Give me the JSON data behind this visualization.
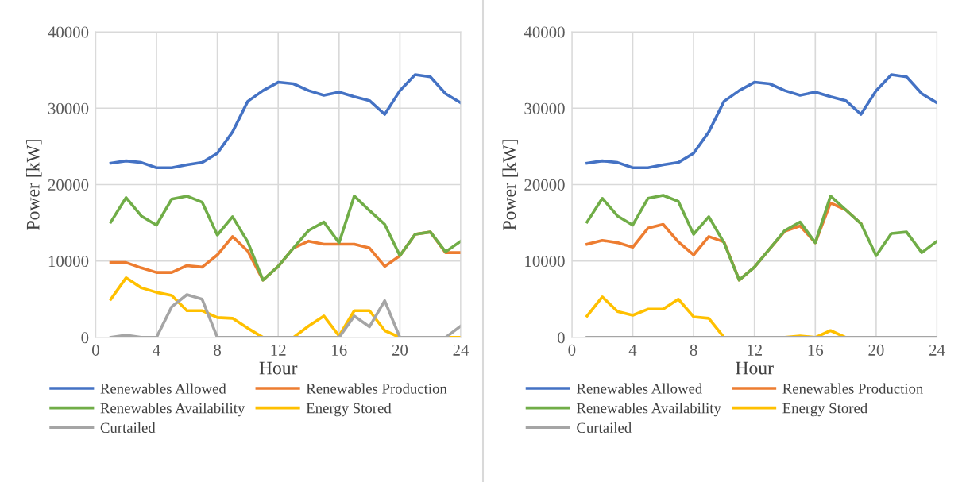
{
  "chart_data": [
    {
      "type": "line",
      "xlabel": "Hour",
      "ylabel": "Power [kW]",
      "x": [
        1,
        2,
        3,
        4,
        5,
        6,
        7,
        8,
        9,
        10,
        11,
        12,
        13,
        14,
        15,
        16,
        17,
        18,
        19,
        20,
        21,
        22,
        23,
        24
      ],
      "xlim": [
        0,
        24
      ],
      "xticks": [
        0,
        4,
        8,
        12,
        16,
        20,
        24
      ],
      "ylim": [
        0,
        40000
      ],
      "yticks": [
        0,
        10000,
        20000,
        30000,
        40000
      ],
      "grid": true,
      "legend": "bottom",
      "marker": "none",
      "line_style": "solid",
      "series": [
        {
          "name": "Renewables Allowed",
          "color": "#4472c4",
          "values": [
            22800,
            23100,
            22900,
            22200,
            22200,
            22600,
            22900,
            24100,
            26900,
            30900,
            32300,
            33400,
            33200,
            32300,
            31700,
            32100,
            31500,
            31000,
            29200,
            32300,
            34400,
            34100,
            31900,
            30700
          ]
        },
        {
          "name": "Renewables Production",
          "color": "#ed7d31",
          "values": [
            9800,
            9800,
            9100,
            8500,
            8500,
            9400,
            9200,
            10800,
            13200,
            11300,
            7500,
            9300,
            11700,
            12600,
            12200,
            12200,
            12200,
            11700,
            9300,
            10700,
            13500,
            13800,
            11100,
            11100
          ]
        },
        {
          "name": "Renewables Availability",
          "color": "#70ad47",
          "values": [
            15100,
            18300,
            15900,
            14700,
            18100,
            18500,
            17700,
            13400,
            15800,
            12500,
            7500,
            9300,
            11700,
            14000,
            15100,
            12400,
            18500,
            16600,
            14800,
            10700,
            13500,
            13800,
            11200,
            12600
          ]
        },
        {
          "name": "Energy Stored",
          "color": "#ffc000",
          "values": [
            5000,
            7800,
            6500,
            5900,
            5500,
            3500,
            3500,
            2600,
            2500,
            1200,
            0,
            0,
            0,
            1500,
            2800,
            200,
            3500,
            3500,
            900,
            0,
            0,
            0,
            0,
            0
          ]
        },
        {
          "name": "Curtailed",
          "color": "#a5a5a5",
          "values": [
            0,
            300,
            0,
            0,
            4000,
            5600,
            5000,
            0,
            0,
            0,
            0,
            0,
            0,
            0,
            0,
            0,
            2800,
            1400,
            4800,
            0,
            0,
            0,
            0,
            1500
          ]
        }
      ]
    },
    {
      "type": "line",
      "xlabel": "Hour",
      "ylabel": "Power [kW]",
      "x": [
        1,
        2,
        3,
        4,
        5,
        6,
        7,
        8,
        9,
        10,
        11,
        12,
        13,
        14,
        15,
        16,
        17,
        18,
        19,
        20,
        21,
        22,
        23,
        24
      ],
      "xlim": [
        0,
        24
      ],
      "xticks": [
        0,
        4,
        8,
        12,
        16,
        20,
        24
      ],
      "ylim": [
        0,
        40000
      ],
      "yticks": [
        0,
        10000,
        20000,
        30000,
        40000
      ],
      "grid": true,
      "legend": "bottom",
      "marker": "none",
      "line_style": "solid",
      "series": [
        {
          "name": "Renewables Allowed",
          "color": "#4472c4",
          "values": [
            22800,
            23100,
            22900,
            22200,
            22200,
            22600,
            22900,
            24100,
            26900,
            30900,
            32300,
            33400,
            33200,
            32300,
            31700,
            32100,
            31500,
            31000,
            29200,
            32300,
            34400,
            34100,
            31900,
            30700
          ]
        },
        {
          "name": "Renewables Production",
          "color": "#ed7d31",
          "values": [
            12200,
            12700,
            12400,
            11800,
            14300,
            14800,
            12500,
            10800,
            13200,
            12500,
            7500,
            9200,
            11600,
            13900,
            14600,
            12400,
            17600,
            16700,
            14900,
            null,
            null,
            null,
            null,
            null
          ]
        },
        {
          "name": "Renewables Availability",
          "color": "#70ad47",
          "values": [
            15100,
            18200,
            15900,
            14700,
            18200,
            18600,
            17800,
            13500,
            15800,
            12400,
            7500,
            9200,
            11600,
            14000,
            15100,
            12400,
            18500,
            16700,
            14900,
            10700,
            13600,
            13800,
            11100,
            12600
          ]
        },
        {
          "name": "Energy Stored",
          "color": "#ffc000",
          "values": [
            2800,
            5300,
            3400,
            2900,
            3700,
            3700,
            5000,
            2700,
            2500,
            0,
            0,
            0,
            0,
            0,
            200,
            0,
            900,
            0,
            0,
            null,
            null,
            null,
            null,
            null
          ]
        },
        {
          "name": "Curtailed",
          "color": "#a5a5a5",
          "values": [
            0,
            0,
            0,
            0,
            0,
            0,
            0,
            0,
            0,
            0,
            0,
            0,
            0,
            0,
            0,
            0,
            0,
            0,
            0,
            0,
            0,
            0,
            0,
            0
          ]
        }
      ]
    }
  ]
}
